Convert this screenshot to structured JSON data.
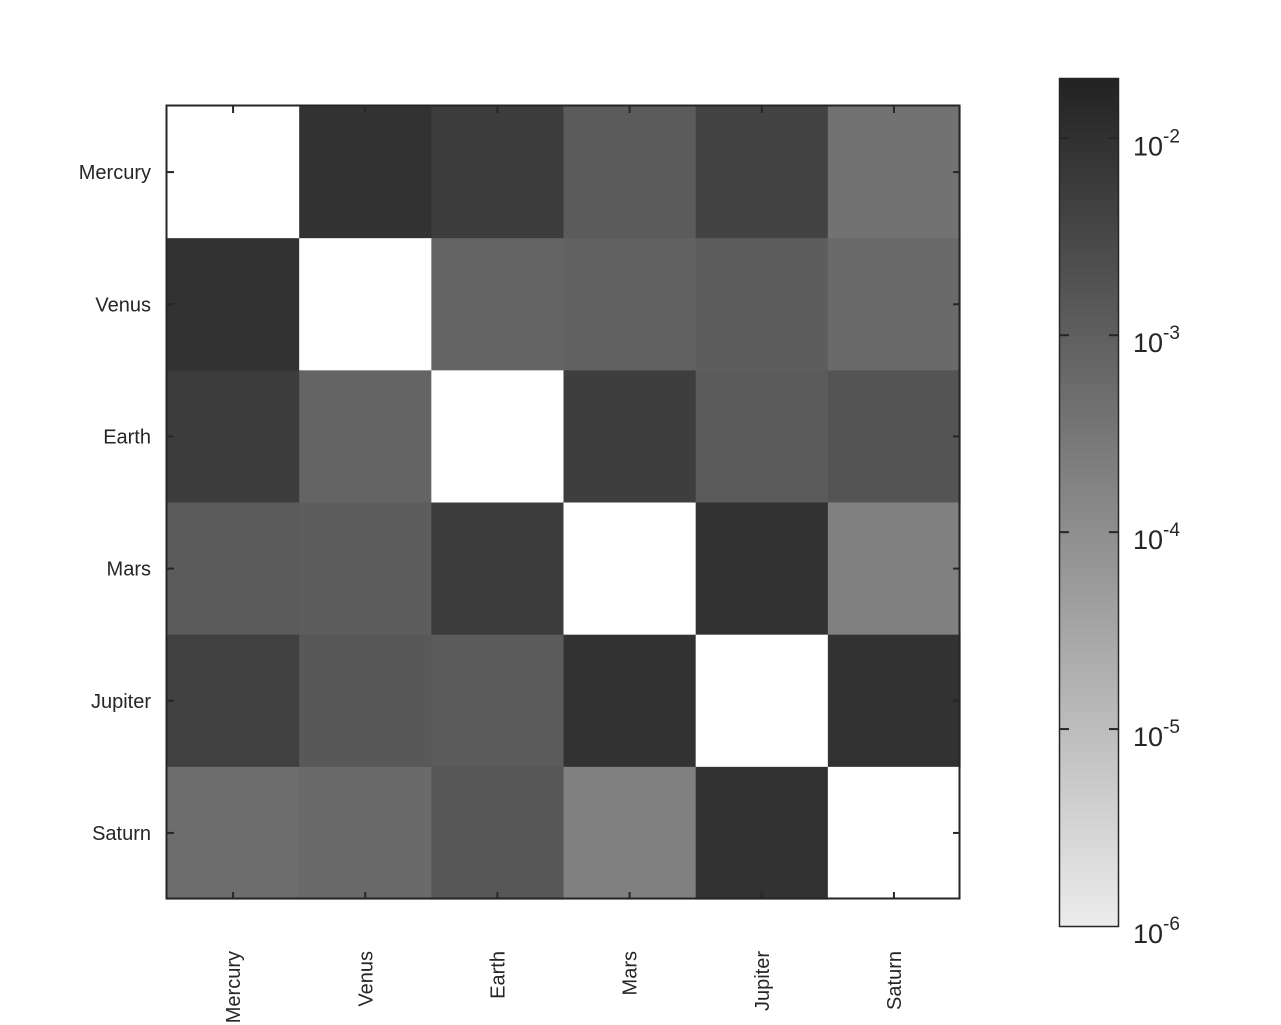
{
  "chart_data": {
    "type": "heatmap",
    "title": "",
    "xlabel": "",
    "ylabel": "",
    "rows": [
      "Mercury",
      "Venus",
      "Earth",
      "Mars",
      "Jupiter",
      "Saturn"
    ],
    "cols": [
      "Mercury",
      "Venus",
      "Earth",
      "Mars",
      "Jupiter",
      "Saturn"
    ],
    "values": [
      [
        null,
        0.009,
        0.0055,
        0.0012,
        0.004,
        0.0004
      ],
      [
        0.009,
        null,
        0.0008,
        0.0009,
        0.0011,
        0.0006
      ],
      [
        0.0055,
        0.0008,
        null,
        0.005,
        0.0012,
        0.0017
      ],
      [
        0.0012,
        0.0011,
        0.0055,
        null,
        0.009,
        0.0002
      ],
      [
        0.0045,
        0.0014,
        0.0012,
        0.009,
        null,
        0.009
      ],
      [
        0.0005,
        0.0006,
        0.0015,
        0.0002,
        0.009,
        null
      ]
    ],
    "colorbar": {
      "scale": "log",
      "range": [
        1e-06,
        0.02
      ],
      "ticks": [
        {
          "value": 0.01,
          "base": "10",
          "exp": "-2"
        },
        {
          "value": 0.001,
          "base": "10",
          "exp": "-3"
        },
        {
          "value": 0.0001,
          "base": "10",
          "exp": "-4"
        },
        {
          "value": 1e-05,
          "base": "10",
          "exp": "-5"
        },
        {
          "value": 1e-06,
          "base": "10",
          "exp": "-6"
        }
      ],
      "colormap": "gray",
      "color_low": "#ececec",
      "color_high": "#222222"
    },
    "diagonal_color": "#ffffff",
    "grid": false
  }
}
